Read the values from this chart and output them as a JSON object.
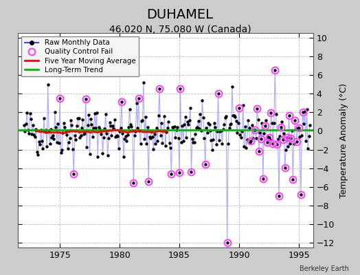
{
  "title": "DUHAMEL",
  "subtitle": "46.020 N, 75.080 W (Canada)",
  "ylabel": "Temperature Anomaly (°C)",
  "watermark": "Berkeley Earth",
  "xlim": [
    1971.5,
    1996.2
  ],
  "ylim": [
    -12.5,
    10.5
  ],
  "yticks": [
    -12,
    -10,
    -8,
    -6,
    -4,
    -2,
    0,
    2,
    4,
    6,
    8,
    10
  ],
  "xticks": [
    1975,
    1980,
    1985,
    1990,
    1995
  ],
  "bg_color": "#cccccc",
  "plot_bg_color": "#ffffff",
  "raw_line_color": "#aaaaff",
  "raw_dot_color": "#000000",
  "qc_fail_color": "#ff44ff",
  "moving_avg_color": "#ff0000",
  "trend_color": "#00bb00",
  "title_fontsize": 14,
  "subtitle_fontsize": 10,
  "seed": 42,
  "start_year": 1972,
  "end_year": 1995
}
